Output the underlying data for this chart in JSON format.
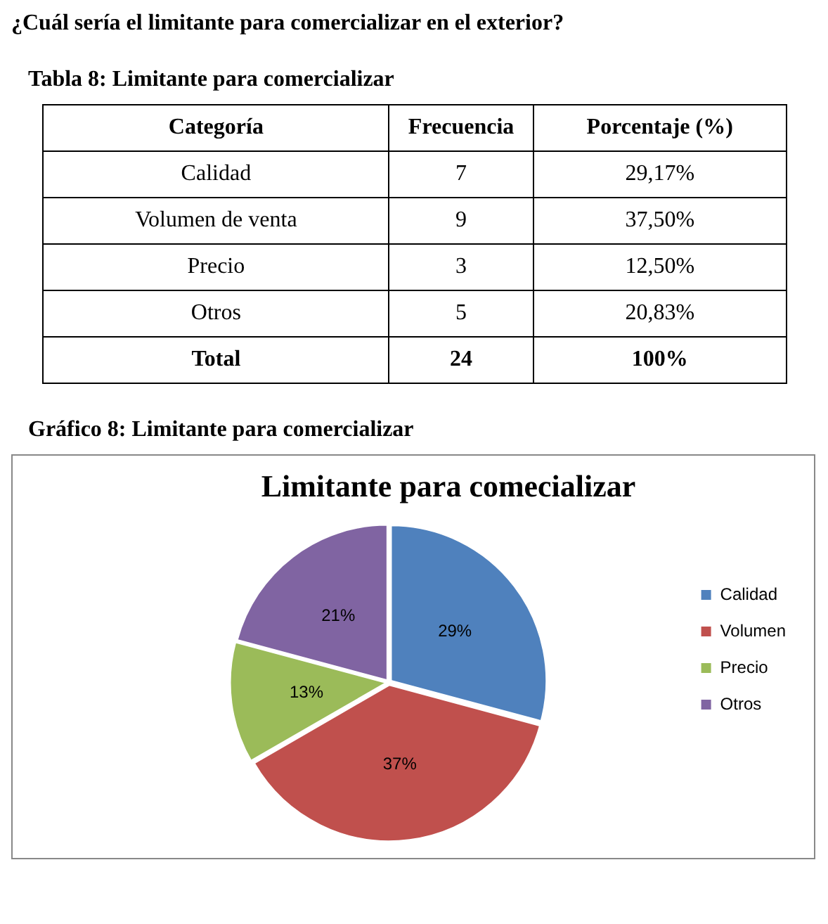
{
  "chart_data": [
    {
      "type": "other",
      "title": "¿Cuál sería el limitante para comercializar en el exterior?",
      "subtitle": "Tabla 8: Limitante para comercializar",
      "annotations": [
        "Categoría",
        "Frecuencia",
        "Porcentaje (%)",
        "Calidad",
        "7",
        "29,17%",
        "Volumen de venta",
        "9",
        "37,50%",
        "Precio",
        "3",
        "12,50%",
        "Otros",
        "5",
        "20,83%",
        "Total",
        "24",
        "100%"
      ]
    },
    {
      "type": "pie",
      "title": "Limitante para comecializar",
      "annotations": [
        "Gráfico 8: Limitante para comercializar"
      ],
      "categories": [
        "Calidad",
        "Volumen",
        "Precio",
        "Otros"
      ],
      "values": [
        29.17,
        37.5,
        12.5,
        20.83
      ],
      "value_labels": [
        "29%",
        "37%",
        "13%",
        "21%"
      ],
      "colors": [
        "#4f81bd",
        "#c0504d",
        "#9bbb59",
        "#8064a2"
      ],
      "legend": "right"
    }
  ]
}
